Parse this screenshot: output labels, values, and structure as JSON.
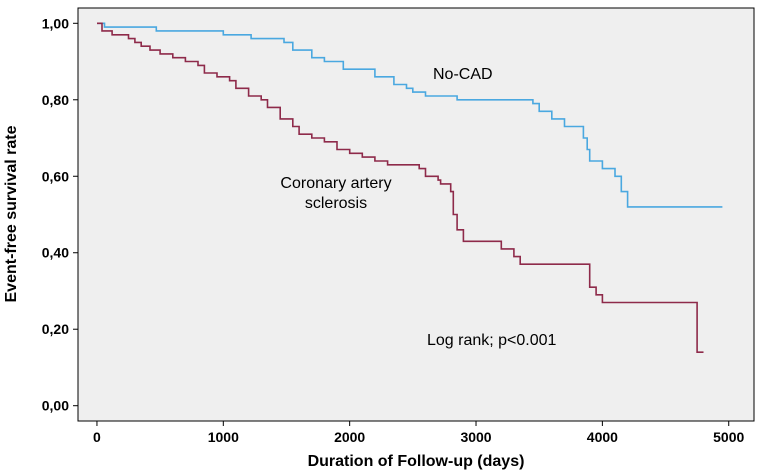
{
  "chart_data": {
    "type": "line",
    "step": true,
    "xlabel": "Duration of Follow-up (days)",
    "ylabel": "Event-free survival rate",
    "xlim": [
      -150,
      5200
    ],
    "ylim": [
      -0.04,
      1.04
    ],
    "xticks": [
      0,
      1000,
      2000,
      3000,
      4000,
      5000
    ],
    "xtick_labels": [
      "0",
      "1000",
      "2000",
      "3000",
      "4000",
      "5000"
    ],
    "yticks": [
      0,
      0.2,
      0.4,
      0.6,
      0.8,
      1.0
    ],
    "ytick_labels": [
      "0,00",
      "0,20",
      "0,40",
      "0,60",
      "0,80",
      "1,00"
    ],
    "grid": false,
    "background": "#efefef",
    "series": [
      {
        "name": "No-CAD",
        "color": "#4aa8e0",
        "points": [
          [
            0,
            1.0
          ],
          [
            60,
            0.99
          ],
          [
            200,
            0.99
          ],
          [
            420,
            0.99
          ],
          [
            470,
            0.98
          ],
          [
            900,
            0.98
          ],
          [
            1000,
            0.97
          ],
          [
            1150,
            0.97
          ],
          [
            1220,
            0.96
          ],
          [
            1450,
            0.96
          ],
          [
            1480,
            0.95
          ],
          [
            1550,
            0.93
          ],
          [
            1700,
            0.91
          ],
          [
            1800,
            0.9
          ],
          [
            1950,
            0.88
          ],
          [
            2150,
            0.88
          ],
          [
            2200,
            0.86
          ],
          [
            2350,
            0.84
          ],
          [
            2450,
            0.83
          ],
          [
            2500,
            0.82
          ],
          [
            2600,
            0.81
          ],
          [
            2850,
            0.8
          ],
          [
            3450,
            0.79
          ],
          [
            3500,
            0.77
          ],
          [
            3600,
            0.75
          ],
          [
            3700,
            0.73
          ],
          [
            3850,
            0.7
          ],
          [
            3880,
            0.67
          ],
          [
            3900,
            0.64
          ],
          [
            4000,
            0.62
          ],
          [
            4100,
            0.6
          ],
          [
            4150,
            0.56
          ],
          [
            4200,
            0.52
          ],
          [
            4950,
            0.52
          ]
        ]
      },
      {
        "name": "Coronary artery sclerosis",
        "color": "#8e2a4a",
        "points": [
          [
            0,
            1.0
          ],
          [
            40,
            0.98
          ],
          [
            120,
            0.97
          ],
          [
            200,
            0.97
          ],
          [
            250,
            0.96
          ],
          [
            300,
            0.95
          ],
          [
            350,
            0.94
          ],
          [
            420,
            0.93
          ],
          [
            500,
            0.92
          ],
          [
            600,
            0.91
          ],
          [
            700,
            0.9
          ],
          [
            800,
            0.89
          ],
          [
            850,
            0.87
          ],
          [
            950,
            0.86
          ],
          [
            1050,
            0.85
          ],
          [
            1100,
            0.83
          ],
          [
            1200,
            0.81
          ],
          [
            1300,
            0.8
          ],
          [
            1350,
            0.78
          ],
          [
            1450,
            0.75
          ],
          [
            1550,
            0.73
          ],
          [
            1600,
            0.71
          ],
          [
            1700,
            0.7
          ],
          [
            1800,
            0.69
          ],
          [
            1900,
            0.67
          ],
          [
            2000,
            0.66
          ],
          [
            2100,
            0.65
          ],
          [
            2200,
            0.64
          ],
          [
            2300,
            0.63
          ],
          [
            2500,
            0.63
          ],
          [
            2550,
            0.62
          ],
          [
            2600,
            0.6
          ],
          [
            2700,
            0.59
          ],
          [
            2720,
            0.58
          ],
          [
            2800,
            0.56
          ],
          [
            2820,
            0.5
          ],
          [
            2850,
            0.46
          ],
          [
            2900,
            0.43
          ],
          [
            3150,
            0.43
          ],
          [
            3200,
            0.41
          ],
          [
            3300,
            0.39
          ],
          [
            3350,
            0.37
          ],
          [
            3850,
            0.37
          ],
          [
            3900,
            0.31
          ],
          [
            3950,
            0.29
          ],
          [
            4000,
            0.27
          ],
          [
            4750,
            0.27
          ],
          [
            4750,
            0.14
          ],
          [
            4800,
            0.14
          ]
        ]
      }
    ],
    "annotations": {
      "nocad": "No-CAD",
      "cas_line1": "Coronary artery",
      "cas_line2": "sclerosis",
      "logrank": "Log rank; p<0.001"
    }
  }
}
